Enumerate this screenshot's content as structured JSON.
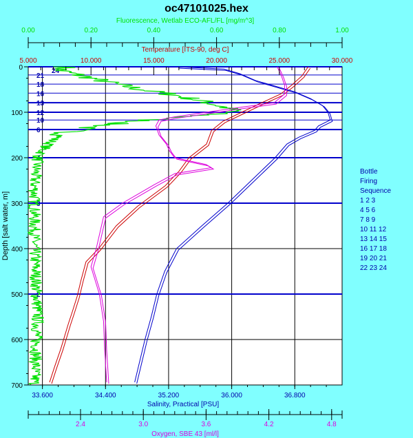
{
  "chart_data": {
    "type": "line",
    "title": "oc47101025.hex",
    "depth_axis": {
      "label": "Depth [salt water, m]",
      "range": [
        0,
        700
      ],
      "ticks": [
        "0",
        "100",
        "200",
        "300",
        "400",
        "500",
        "600",
        "700"
      ],
      "inverted": true
    },
    "axes": {
      "fluorescence": {
        "label": "Fluorescence, Wetlab ECO-AFL/FL [mg/m^3]",
        "range": [
          0,
          1
        ],
        "ticks": [
          "0.00",
          "0.20",
          "0.40",
          "0.60",
          "0.80",
          "1.00"
        ],
        "tick_values": [
          0,
          0.2,
          0.4,
          0.6,
          0.8,
          1.0
        ],
        "color": "#00e000",
        "position": "top-outer"
      },
      "temperature": {
        "label": "Temperature [ITS-90, deg C]",
        "range": [
          5,
          30
        ],
        "ticks": [
          "5.000",
          "10.000",
          "15.000",
          "20.000",
          "25.000",
          "30.000"
        ],
        "tick_values": [
          5,
          10,
          15,
          20,
          25,
          30
        ],
        "color": "#cc0000",
        "position": "top-inner"
      },
      "salinity": {
        "label": "Salinity, Practical [PSU]",
        "range": [
          33.42,
          37.4
        ],
        "ticks": [
          "33.600",
          "34.400",
          "35.200",
          "36.000",
          "36.800"
        ],
        "tick_values": [
          33.6,
          34.4,
          35.2,
          36.0,
          36.8
        ],
        "color": "#0000aa",
        "position": "bottom-inner"
      },
      "oxygen": {
        "label": "Oxygen, SBE 43 [ml/l]",
        "range": [
          1.9,
          4.9
        ],
        "ticks": [
          "2.4",
          "3.0",
          "3.6",
          "4.2",
          "4.8"
        ],
        "tick_values": [
          2.4,
          3.0,
          3.6,
          4.2,
          4.8
        ],
        "color": "#dd00dd",
        "position": "bottom-outer"
      }
    },
    "series": [
      {
        "name": "Fluorescence",
        "axis": "fluorescence",
        "color": "#00e000",
        "points": [
          [
            0,
            0.12
          ],
          [
            8,
            0.1
          ],
          [
            18,
            0.16
          ],
          [
            28,
            0.22
          ],
          [
            38,
            0.28
          ],
          [
            50,
            0.36
          ],
          [
            60,
            0.45
          ],
          [
            70,
            0.52
          ],
          [
            80,
            0.58
          ],
          [
            90,
            0.63
          ],
          [
            97,
            0.66
          ],
          [
            103,
            0.6
          ],
          [
            110,
            0.5
          ],
          [
            117,
            0.38
          ],
          [
            125,
            0.28
          ],
          [
            135,
            0.18
          ],
          [
            145,
            0.12
          ],
          [
            160,
            0.08
          ],
          [
            180,
            0.05
          ],
          [
            200,
            0.03
          ],
          [
            250,
            0.02
          ],
          [
            400,
            0.02
          ],
          [
            550,
            0.03
          ],
          [
            700,
            0.02
          ]
        ]
      },
      {
        "name": "Temperature",
        "axis": "temperature",
        "color": "#cc0000",
        "points": [
          [
            0,
            27.3
          ],
          [
            20,
            26.8
          ],
          [
            40,
            26.0
          ],
          [
            60,
            25.1
          ],
          [
            79,
            23.6
          ],
          [
            100,
            22.0
          ],
          [
            120,
            20.5
          ],
          [
            140,
            19.6
          ],
          [
            170,
            19.2
          ],
          [
            200,
            17.8
          ],
          [
            230,
            17.0
          ],
          [
            262,
            15.9
          ],
          [
            307,
            13.7
          ],
          [
            350,
            12.0
          ],
          [
            400,
            10.6
          ],
          [
            429,
            9.6
          ],
          [
            470,
            9.2
          ],
          [
            505,
            8.9
          ],
          [
            540,
            8.5
          ],
          [
            565,
            8.2
          ],
          [
            620,
            7.6
          ],
          [
            660,
            7.1
          ],
          [
            694,
            6.7
          ]
        ]
      },
      {
        "name": "Salinity",
        "axis": "salinity",
        "color": "#0000cc",
        "points": [
          [
            0,
            35.3
          ],
          [
            5,
            35.9
          ],
          [
            15,
            36.1
          ],
          [
            30,
            36.3
          ],
          [
            40,
            36.5
          ],
          [
            55,
            36.8
          ],
          [
            70,
            37.0
          ],
          [
            85,
            37.15
          ],
          [
            100,
            37.22
          ],
          [
            117,
            37.25
          ],
          [
            130,
            37.1
          ],
          [
            140,
            37.05
          ],
          [
            155,
            36.85
          ],
          [
            170,
            36.7
          ],
          [
            200,
            36.55
          ],
          [
            250,
            36.25
          ],
          [
            300,
            35.95
          ],
          [
            350,
            35.62
          ],
          [
            400,
            35.3
          ],
          [
            450,
            35.15
          ],
          [
            500,
            35.05
          ],
          [
            550,
            34.98
          ],
          [
            600,
            34.9
          ],
          [
            694,
            34.77
          ]
        ]
      },
      {
        "name": "Oxygen",
        "axis": "oxygen",
        "color": "#dd00dd",
        "points": [
          [
            0,
            4.28
          ],
          [
            20,
            4.32
          ],
          [
            40,
            4.35
          ],
          [
            60,
            4.35
          ],
          [
            79,
            4.25
          ],
          [
            90,
            3.9
          ],
          [
            100,
            3.6
          ],
          [
            110,
            3.3
          ],
          [
            117,
            3.15
          ],
          [
            130,
            3.12
          ],
          [
            150,
            3.15
          ],
          [
            170,
            3.22
          ],
          [
            185,
            3.25
          ],
          [
            200,
            3.3
          ],
          [
            215,
            3.6
          ],
          [
            222,
            3.65
          ],
          [
            235,
            3.3
          ],
          [
            260,
            3.1
          ],
          [
            280,
            2.95
          ],
          [
            300,
            2.8
          ],
          [
            330,
            2.62
          ],
          [
            370,
            2.58
          ],
          [
            400,
            2.55
          ],
          [
            440,
            2.5
          ],
          [
            500,
            2.58
          ],
          [
            560,
            2.62
          ],
          [
            620,
            2.63
          ],
          [
            694,
            2.65
          ]
        ]
      }
    ],
    "bottle_lines": [
      {
        "depth": 0,
        "label": "24"
      },
      {
        "depth": 18,
        "label": "21"
      },
      {
        "depth": 38,
        "label": "18"
      },
      {
        "depth": 58,
        "label": "16"
      },
      {
        "depth": 79,
        "label": "13"
      },
      {
        "depth": 100,
        "label": "12"
      },
      {
        "depth": 117,
        "label": "10"
      },
      {
        "depth": 138,
        "label": "6"
      },
      {
        "depth": 200,
        "label": "4"
      },
      {
        "depth": 300,
        "label": "3"
      },
      {
        "depth": 500,
        "label": "2"
      }
    ],
    "legend": {
      "title_lines": [
        "Bottle",
        "Firing",
        "Sequence"
      ],
      "rows": [
        "1  2  3",
        "4  5  6",
        "7  8  9",
        "10 11 12",
        "13 14 15",
        "16 17 18",
        "19 20 21",
        "22 23 24"
      ],
      "placement": "right"
    },
    "grid": true
  }
}
